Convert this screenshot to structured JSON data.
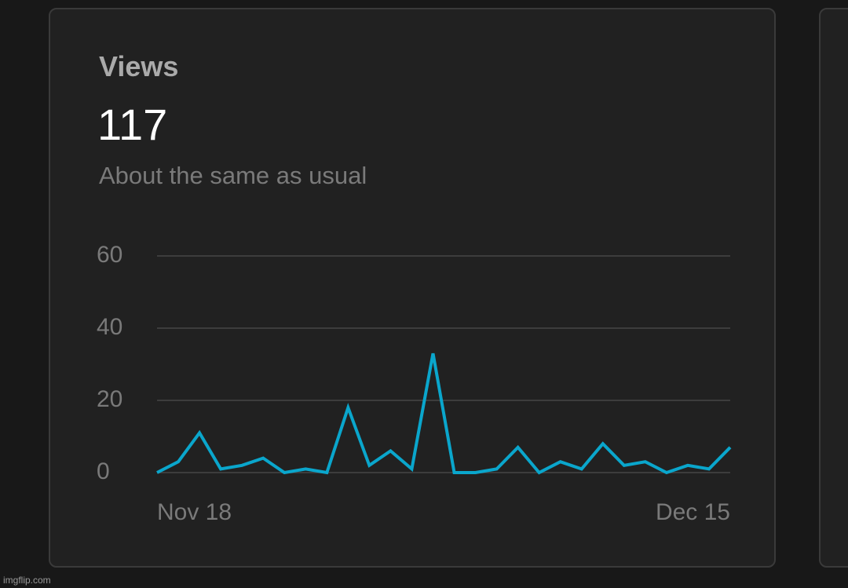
{
  "card": {
    "title": "Views",
    "value": 117,
    "subtitle": "About the same as usual"
  },
  "chart_data": {
    "type": "line",
    "categories": [
      "Nov 18",
      null,
      null,
      null,
      null,
      null,
      null,
      null,
      null,
      null,
      null,
      null,
      null,
      null,
      null,
      null,
      null,
      null,
      null,
      null,
      null,
      null,
      null,
      null,
      null,
      null,
      null,
      "Dec 15"
    ],
    "values": [
      0,
      3,
      11,
      1,
      2,
      4,
      0,
      1,
      0,
      18,
      2,
      6,
      1,
      33,
      0,
      0,
      1,
      7,
      0,
      3,
      1,
      8,
      2,
      3,
      0,
      2,
      1,
      7
    ],
    "color": "#0aa6cc",
    "ylim": [
      0,
      60
    ],
    "yticks": [
      0,
      20,
      40,
      60
    ],
    "grid": true
  },
  "watermark": "imgflip.com"
}
